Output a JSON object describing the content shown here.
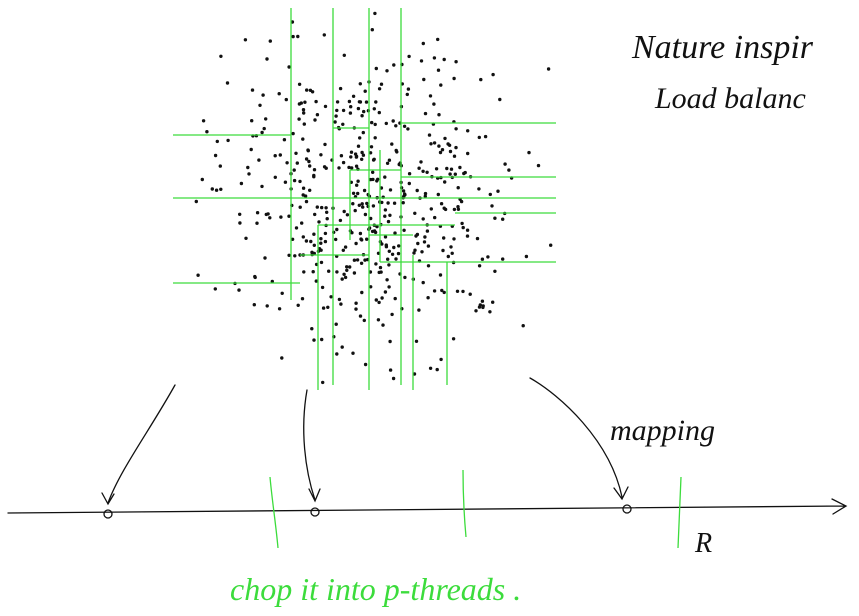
{
  "note": {
    "title_line1": "Nature inspir",
    "title_line2": "Load balanc",
    "mapping": "mapping",
    "axis_label": "R",
    "caption": "chop it into p-threads ."
  }
}
